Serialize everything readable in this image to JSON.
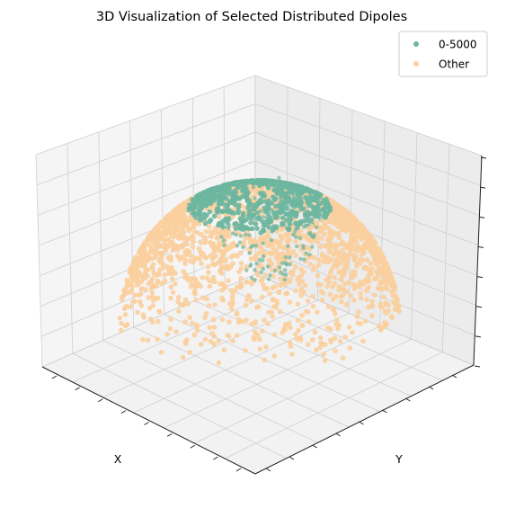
{
  "chart_data": {
    "type": "scatter",
    "projection": "3d",
    "title": "3D Visualization of Selected Distributed Dipoles",
    "xlabel": "X",
    "ylabel": "Y",
    "zlabel": "",
    "grid": true,
    "tick_labels_visible": false,
    "legend_position": "top-right",
    "view": {
      "elevation_deg": 20,
      "azimuth_deg": -45
    },
    "series": [
      {
        "name": "0-5000",
        "color": "#6db6a0",
        "region": "top cap of a hemispherical shell, partly hidden behind the other points"
      },
      {
        "name": "Other",
        "color": "#fbcf9f",
        "region": "rest of the hemispherical shell"
      }
    ]
  }
}
